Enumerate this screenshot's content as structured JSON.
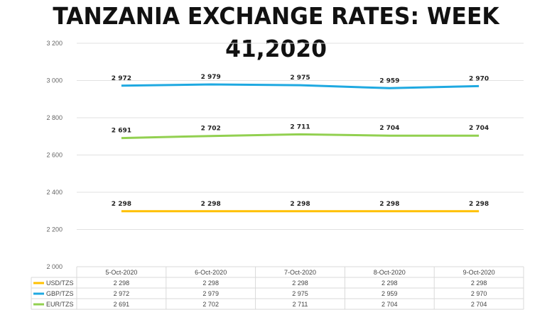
{
  "title": "TANZANIA EXCHANGE RATES: WEEK 41,2020",
  "chart_data": {
    "type": "line",
    "title": "TANZANIA EXCHANGE RATES: WEEK 41,2020",
    "categories": [
      "5-Oct-2020",
      "6-Oct-2020",
      "7-Oct-2020",
      "8-Oct-2020",
      "9-Oct-2020"
    ],
    "ylim": [
      2000,
      3200
    ],
    "yticks": [
      2000,
      2200,
      2400,
      2600,
      2800,
      3000,
      3200
    ],
    "ytick_labels": [
      "2 000",
      "2 200",
      "2 400",
      "2 600",
      "2 800",
      "3 000",
      "3 200"
    ],
    "grid": true,
    "legend": "bottom-table",
    "series": [
      {
        "name": "USD/TZS",
        "color": "#FFC000",
        "values": [
          2298,
          2298,
          2298,
          2298,
          2298
        ],
        "labels": [
          "2 298",
          "2 298",
          "2 298",
          "2 298",
          "2 298"
        ]
      },
      {
        "name": "GBP/TZS",
        "color": "#1FA9E1",
        "values": [
          2972,
          2979,
          2975,
          2959,
          2970
        ],
        "labels": [
          "2 972",
          "2 979",
          "2 975",
          "2 959",
          "2 970"
        ]
      },
      {
        "name": "EUR/TZS",
        "color": "#92D050",
        "values": [
          2691,
          2702,
          2711,
          2704,
          2704
        ],
        "labels": [
          "2 691",
          "2 702",
          "2 711",
          "2 704",
          "2 704"
        ]
      }
    ]
  }
}
